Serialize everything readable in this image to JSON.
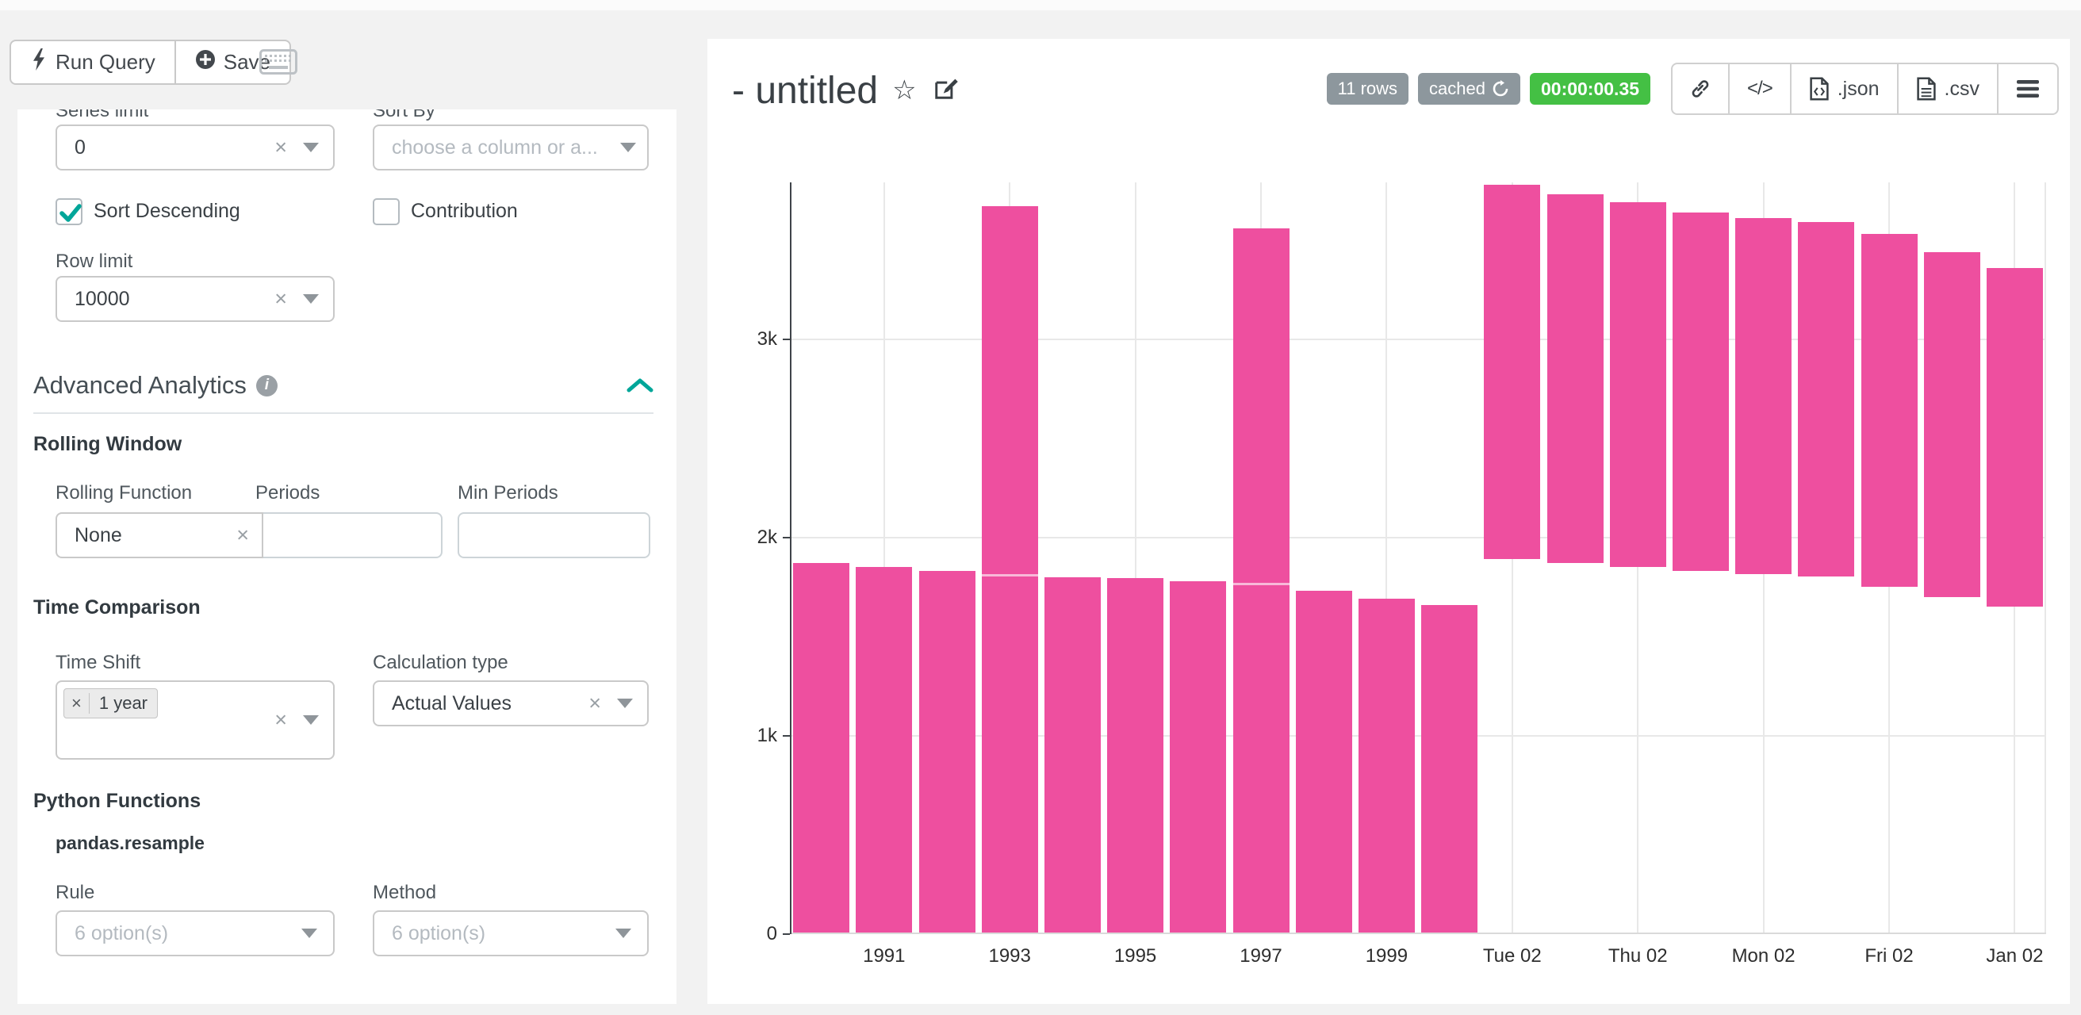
{
  "colors": {
    "bar": "#ee4f9f",
    "accent_teal": "#00a699",
    "badge_gray": "#8d979d",
    "timer_green": "#44c044"
  },
  "icons": {
    "clear": "×",
    "star": "☆",
    "code": "</>"
  },
  "toolbar": {
    "run_query": "Run Query",
    "save": "Save"
  },
  "query_panel": {
    "series_limit_label": "Series limit",
    "series_limit_value": "0",
    "sort_by_label": "Sort By",
    "sort_by_placeholder": "choose a column or a...",
    "sort_descending_label": "Sort Descending",
    "sort_descending_checked": true,
    "contribution_label": "Contribution",
    "contribution_checked": false,
    "row_limit_label": "Row limit",
    "row_limit_value": "10000",
    "advanced_analytics_title": "Advanced Analytics",
    "rolling_window_title": "Rolling Window",
    "rolling_function_label": "Rolling Function",
    "rolling_function_value": "None",
    "periods_label": "Periods",
    "periods_value": "",
    "min_periods_label": "Min Periods",
    "min_periods_value": "",
    "time_comparison_title": "Time Comparison",
    "time_shift_label": "Time Shift",
    "time_shift_tag": "1 year",
    "calculation_type_label": "Calculation type",
    "calculation_type_value": "Actual Values",
    "python_functions_title": "Python Functions",
    "pandas_resample_title": "pandas.resample",
    "rule_label": "Rule",
    "rule_placeholder": "6 option(s)",
    "method_label": "Method",
    "method_placeholder": "6 option(s)"
  },
  "chart_header": {
    "title": "- untitled",
    "rows_badge": "11 rows",
    "cached_badge": "cached",
    "timer_badge": "00:00:00.35",
    "json_label": ".json",
    "csv_label": ".csv"
  },
  "chart_data": {
    "type": "bar",
    "title": "",
    "xlabel": "",
    "ylabel": "",
    "ylim": [
      0,
      3790
    ],
    "yticks": [
      0,
      1000,
      2000,
      3000
    ],
    "ytick_labels": [
      "0",
      "1k",
      "2k",
      "3k"
    ],
    "grid": true,
    "legend": "none",
    "bar_color": "#ee4f9f",
    "bars": [
      {
        "label": "",
        "y0": 0,
        "y1": 1870
      },
      {
        "label": "1991",
        "y0": 0,
        "y1": 1850
      },
      {
        "label": "",
        "y0": 0,
        "y1": 1830
      },
      {
        "label": "1993",
        "y0": 0,
        "y1": 3670,
        "notch": 1815
      },
      {
        "label": "",
        "y0": 0,
        "y1": 1800
      },
      {
        "label": "1995",
        "y0": 0,
        "y1": 1795
      },
      {
        "label": "",
        "y0": 0,
        "y1": 1780
      },
      {
        "label": "1997",
        "y0": 0,
        "y1": 3560,
        "notch": 1770
      },
      {
        "label": "",
        "y0": 0,
        "y1": 1730
      },
      {
        "label": "1999",
        "y0": 0,
        "y1": 1690
      },
      {
        "label": "",
        "y0": 0,
        "y1": 1660
      },
      {
        "label": "Tue 02",
        "y0": 1890,
        "y1": 3780
      },
      {
        "label": "",
        "y0": 1870,
        "y1": 3730
      },
      {
        "label": "Thu 02",
        "y0": 1850,
        "y1": 3690
      },
      {
        "label": "",
        "y0": 1830,
        "y1": 3640
      },
      {
        "label": "Mon 02",
        "y0": 1815,
        "y1": 3610
      },
      {
        "label": "",
        "y0": 1805,
        "y1": 3590
      },
      {
        "label": "Fri 02",
        "y0": 1750,
        "y1": 3530
      },
      {
        "label": "",
        "y0": 1700,
        "y1": 3440
      },
      {
        "label": "Jan 02",
        "y0": 1650,
        "y1": 3360
      }
    ]
  }
}
